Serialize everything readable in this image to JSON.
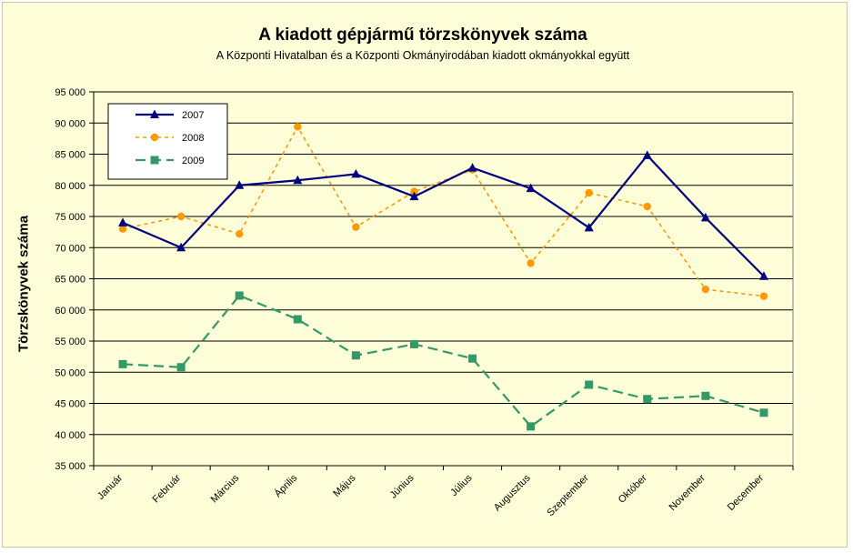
{
  "chart_data": {
    "type": "line",
    "title": "A  kiadott gépjármű  törzskönyvek száma",
    "subtitle": "A Központi Hivatalban és a Központi Okmányirodában kiadott okmányokkal együtt",
    "xlabel": "",
    "ylabel": "Törzskönyvek száma",
    "ylim": [
      35000,
      95000
    ],
    "ytick_step": 5000,
    "ytick_labels": [
      "35 000",
      "40 000",
      "45 000",
      "50 000",
      "55 000",
      "60 000",
      "65 000",
      "70 000",
      "75 000",
      "80 000",
      "85 000",
      "90 000",
      "95 000"
    ],
    "grid": true,
    "legend_position": "top-left",
    "categories": [
      "Január",
      "Február",
      "Március",
      "Április",
      "Május",
      "Június",
      "Július",
      "Augusztus",
      "Szeptember",
      "Október",
      "November",
      "December"
    ],
    "series": [
      {
        "name": "2007",
        "color": "#000080",
        "dash": "solid",
        "marker": "triangle",
        "values": [
          74000,
          70000,
          80000,
          80800,
          81800,
          78200,
          82800,
          79500,
          73200,
          84800,
          74800,
          65400
        ]
      },
      {
        "name": "2008",
        "color": "#ff9900",
        "dash": "short-dash",
        "marker": "circle",
        "values": [
          73000,
          75000,
          72200,
          89400,
          73300,
          79000,
          82500,
          67500,
          78800,
          76600,
          63300,
          62200
        ]
      },
      {
        "name": "2009",
        "color": "#339966",
        "dash": "long-dash",
        "marker": "square",
        "values": [
          51300,
          50800,
          62300,
          58500,
          52700,
          54500,
          52200,
          41300,
          48000,
          45700,
          46200,
          43500
        ]
      }
    ]
  }
}
